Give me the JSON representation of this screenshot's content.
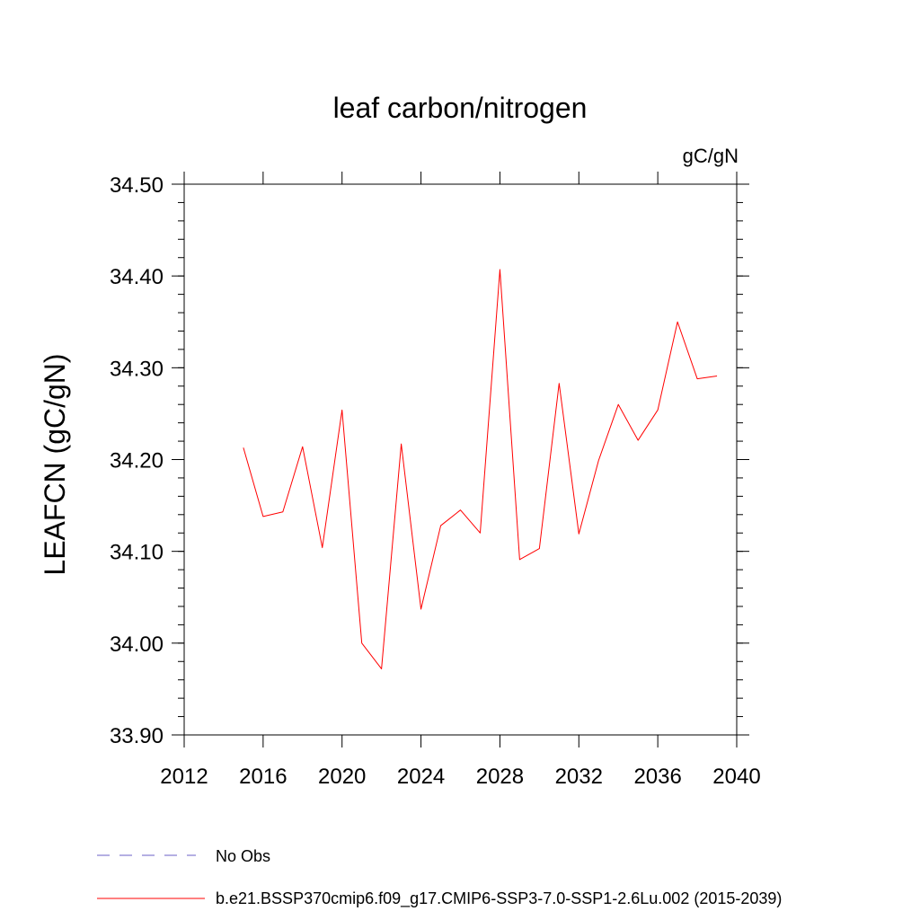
{
  "chart_data": {
    "type": "line",
    "title": "leaf carbon/nitrogen",
    "units": "gC/gN",
    "ylabel": "LEAFCN  (gC/gN)",
    "xlabel": "",
    "xlim": [
      2012,
      2040
    ],
    "ylim": [
      33.9,
      34.5
    ],
    "x_ticks": [
      2012,
      2016,
      2020,
      2024,
      2028,
      2032,
      2036,
      2040
    ],
    "x_tick_labels": [
      "2012",
      "2016",
      "2020",
      "2024",
      "2028",
      "2032",
      "2036",
      "2040"
    ],
    "y_ticks": [
      33.9,
      34.0,
      34.1,
      34.2,
      34.3,
      34.4,
      34.5
    ],
    "y_tick_labels": [
      "33.90",
      "34.00",
      "34.10",
      "34.20",
      "34.30",
      "34.40",
      "34.50"
    ],
    "grid": false,
    "series": [
      {
        "name": "b.e21.BSSP370cmip6.f09_g17.CMIP6-SSP3-7.0-SSP1-2.6Lu.002 (2015-2039)",
        "color": "#ff0000",
        "x": [
          2015,
          2016,
          2017,
          2018,
          2019,
          2020,
          2021,
          2022,
          2023,
          2024,
          2025,
          2026,
          2027,
          2028,
          2029,
          2030,
          2031,
          2032,
          2033,
          2034,
          2035,
          2036,
          2037,
          2038,
          2039
        ],
        "values": [
          34.213,
          34.138,
          34.143,
          34.214,
          34.104,
          34.254,
          34.0,
          33.972,
          34.217,
          34.037,
          34.128,
          34.145,
          34.12,
          34.407,
          34.091,
          34.103,
          34.283,
          34.119,
          34.199,
          34.26,
          34.221,
          34.254,
          34.35,
          34.288,
          34.291
        ]
      }
    ],
    "legend": [
      {
        "label": "No Obs",
        "color": "#6b5fc7",
        "style": "dashed"
      },
      {
        "label": "b.e21.BSSP370cmip6.f09_g17.CMIP6-SSP3-7.0-SSP1-2.6Lu.002 (2015-2039)",
        "color": "#ff0000",
        "style": "solid"
      }
    ]
  }
}
